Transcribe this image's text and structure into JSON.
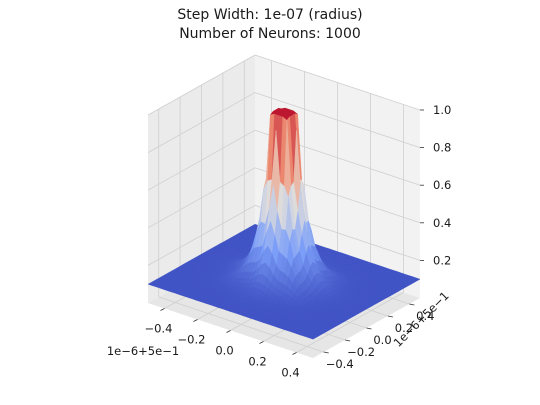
{
  "chart_data": {
    "type": "surface",
    "title": "Step Width: 1e-07 (radius)",
    "subtitle": "Number of Neurons: 1000",
    "x_ticks": [
      -0.4,
      -0.2,
      0.0,
      0.2,
      0.4
    ],
    "x_tick_labels": [
      "−0.4",
      "−0.2",
      "0.0",
      "0.2",
      "0.4"
    ],
    "x_offset_label": "1e−6+5e−1",
    "y_ticks": [
      -0.4,
      -0.2,
      0.0,
      0.2,
      0.4
    ],
    "y_tick_labels": [
      "−0.4",
      "−0.2",
      "0.0",
      "0.2",
      "0.4"
    ],
    "y_offset_label": "1e−6+5e−1",
    "z_ticks": [
      0.2,
      0.4,
      0.6,
      0.8,
      1.0
    ],
    "z_tick_labels": [
      "0.2",
      "0.4",
      "0.6",
      "0.8",
      "1.0"
    ],
    "xlim": [
      -0.5,
      0.5
    ],
    "ylim": [
      -0.5,
      0.5
    ],
    "zlim": [
      0.0,
      1.0
    ],
    "surface": {
      "peak_value": 1.0,
      "plateau_radius": 0.07,
      "base_value": 0.1,
      "colormap": "coolwarm"
    },
    "grid": true
  }
}
